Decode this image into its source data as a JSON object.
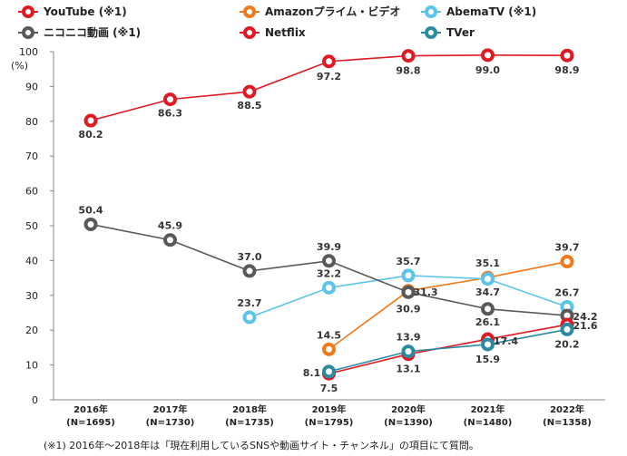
{
  "chart_data": {
    "type": "line",
    "ylabel": "(%)",
    "ylim": [
      0,
      100
    ],
    "yticks": [
      0,
      10,
      20,
      30,
      40,
      50,
      60,
      70,
      80,
      90,
      100
    ],
    "x": [
      "2016年",
      "2017年",
      "2018年",
      "2019年",
      "2020年",
      "2021年",
      "2022年"
    ],
    "x_sub": [
      "(N=1695)",
      "(N=1730)",
      "(N=1735)",
      "(N=1795)",
      "(N=1390)",
      "(N=1480)",
      "(N=1358)"
    ],
    "grid": false,
    "legend": "top",
    "series": [
      {
        "name": "YouTube (※1)",
        "color": "#e01a22",
        "values": [
          80.2,
          86.3,
          88.5,
          97.2,
          98.8,
          99.0,
          98.9
        ]
      },
      {
        "name": "Amazonプライム・ビデオ",
        "color": "#f07a1a",
        "values": [
          null,
          null,
          null,
          14.5,
          31.3,
          35.1,
          39.7
        ]
      },
      {
        "name": "AbemaTV (※1)",
        "color": "#5bc4ea",
        "values": [
          null,
          null,
          23.7,
          32.2,
          35.7,
          34.7,
          26.7
        ]
      },
      {
        "name": "ニコニコ動画 (※1)",
        "color": "#595959",
        "values": [
          50.4,
          45.9,
          37.0,
          39.9,
          30.9,
          26.1,
          24.2
        ]
      },
      {
        "name": "Netflix",
        "color": "#e01a22",
        "values": [
          null,
          null,
          null,
          7.5,
          13.1,
          17.4,
          21.6
        ]
      },
      {
        "name": "TVer",
        "color": "#2a8aa0",
        "values": [
          null,
          null,
          null,
          8.1,
          13.9,
          15.9,
          20.2
        ]
      }
    ],
    "labels": [
      {
        "series": 0,
        "i": 0,
        "text": "80.2"
      },
      {
        "series": 0,
        "i": 1,
        "text": "86.3"
      },
      {
        "series": 0,
        "i": 2,
        "text": "88.5"
      },
      {
        "series": 0,
        "i": 3,
        "text": "97.2"
      },
      {
        "series": 0,
        "i": 4,
        "text": "98.8"
      },
      {
        "series": 0,
        "i": 5,
        "text": "99.0"
      },
      {
        "series": 0,
        "i": 6,
        "text": "98.9"
      },
      {
        "series": 3,
        "i": 0,
        "text": "50.4"
      },
      {
        "series": 3,
        "i": 1,
        "text": "45.9"
      },
      {
        "series": 3,
        "i": 2,
        "text": "37.0"
      },
      {
        "series": 3,
        "i": 3,
        "text": "39.9"
      },
      {
        "series": 3,
        "i": 4,
        "text": "30.9"
      },
      {
        "series": 3,
        "i": 5,
        "text": "26.1"
      },
      {
        "series": 3,
        "i": 6,
        "text": "24.2"
      },
      {
        "series": 2,
        "i": 2,
        "text": "23.7"
      },
      {
        "series": 2,
        "i": 3,
        "text": "32.2"
      },
      {
        "series": 2,
        "i": 4,
        "text": "35.7"
      },
      {
        "series": 2,
        "i": 5,
        "text": "34.7"
      },
      {
        "series": 2,
        "i": 6,
        "text": "26.7"
      },
      {
        "series": 1,
        "i": 3,
        "text": "14.5"
      },
      {
        "series": 1,
        "i": 4,
        "text": "31.3"
      },
      {
        "series": 1,
        "i": 5,
        "text": "35.1"
      },
      {
        "series": 1,
        "i": 6,
        "text": "39.7"
      },
      {
        "series": 4,
        "i": 3,
        "text": "7.5"
      },
      {
        "series": 4,
        "i": 4,
        "text": "13.1"
      },
      {
        "series": 4,
        "i": 5,
        "text": "17.4"
      },
      {
        "series": 4,
        "i": 6,
        "text": "21.6"
      },
      {
        "series": 5,
        "i": 3,
        "text": "8.1"
      },
      {
        "series": 5,
        "i": 4,
        "text": "13.9"
      },
      {
        "series": 5,
        "i": 5,
        "text": "15.9"
      },
      {
        "series": 5,
        "i": 6,
        "text": "20.2"
      }
    ]
  },
  "footnote": "(※1) 2016年～2018年は「現在利用しているSNSや動画サイト・チャンネル」の項目にて質問。"
}
